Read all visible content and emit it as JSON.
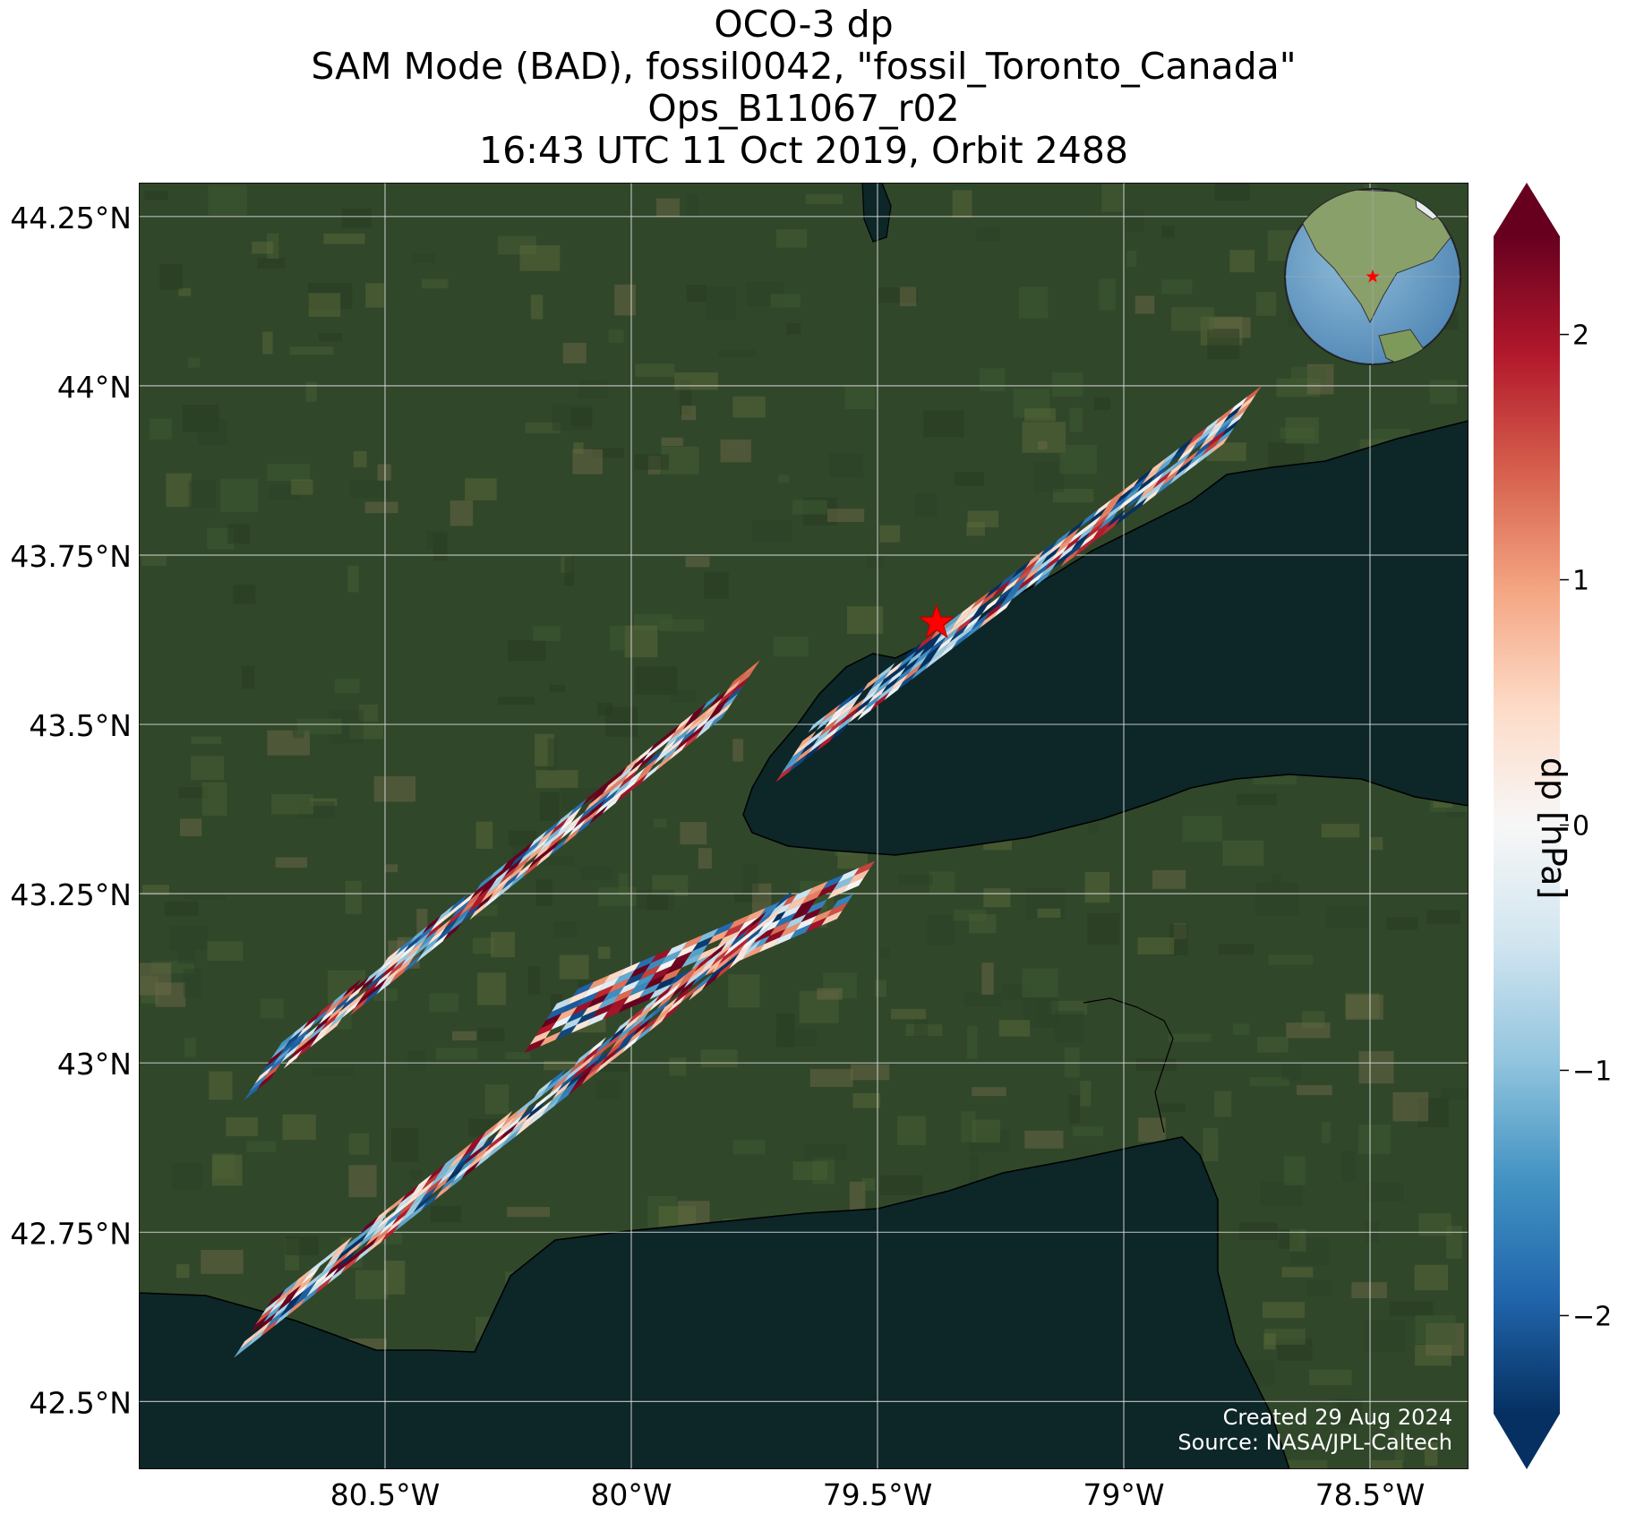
{
  "title_lines": [
    "OCO-3 dp",
    "SAM Mode (BAD), fossil0042, \"fossil_Toronto_Canada\"",
    "Ops_B11067_r02",
    "16:43 UTC 11 Oct 2019, Orbit 2488"
  ],
  "credit": {
    "created": "Created 29 Aug 2024",
    "source": "Source: NASA/JPL-Caltech"
  },
  "colorbar": {
    "label": "dp [hPa]",
    "range": [
      -2.4,
      2.4
    ],
    "ticks": [
      2,
      1,
      0,
      -1,
      -2
    ],
    "tick_labels": [
      "2",
      "1",
      "0",
      "−1",
      "−2"
    ],
    "colormap": "RdBu_r",
    "extend": "both"
  },
  "map": {
    "lon_range": [
      -81.0,
      -78.3
    ],
    "lat_range": [
      42.4,
      44.3
    ],
    "lon_ticks": [
      -80.5,
      -80.0,
      -79.5,
      -79.0,
      -78.5
    ],
    "lon_labels": [
      "80.5°W",
      "80°W",
      "79.5°W",
      "79°W",
      "78.5°W"
    ],
    "lat_ticks": [
      44.25,
      44.0,
      43.75,
      43.5,
      43.25,
      43.0,
      42.75,
      42.5
    ],
    "lat_labels": [
      "44.25°N",
      "44°N",
      "43.75°N",
      "43.5°N",
      "43.25°N",
      "43°N",
      "42.75°N",
      "42.5°N"
    ],
    "target": {
      "name": "Toronto",
      "lon": -79.38,
      "lat": 43.65,
      "marker": "star-icon"
    },
    "land_color": "#31472a",
    "water_color": "#0d2628",
    "swaths": [
      {
        "lon_start": -79.63,
        "lat_start": 43.5,
        "lon_end": -78.72,
        "lat_end": 44.0
      },
      {
        "lon_start": -80.71,
        "lat_start": 43.03,
        "lon_end": -79.73,
        "lat_end": 43.6
      },
      {
        "lon_start": -80.14,
        "lat_start": 43.1,
        "lon_end": -79.5,
        "lat_end": 43.3
      },
      {
        "lon_start": -80.73,
        "lat_start": 42.65,
        "lon_end": -79.68,
        "lat_end": 43.25
      }
    ]
  }
}
